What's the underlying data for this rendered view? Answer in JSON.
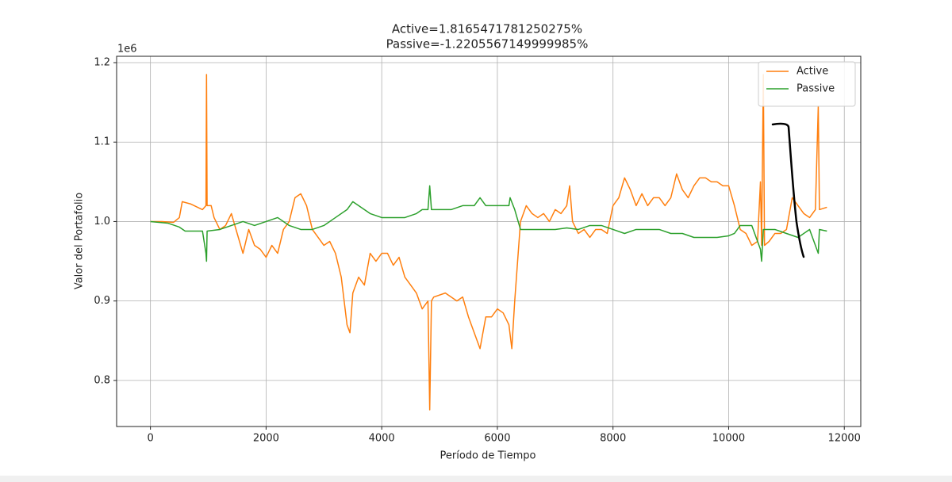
{
  "chart_data": {
    "type": "line",
    "title": [
      "Active=1.8165471781250275%",
      "Passive=-1.2205567149999985%"
    ],
    "xlabel": "Período de Tiempo",
    "ylabel": "Valor del Portafolio",
    "y_offset_label": "1e6",
    "xlim": [
      -585,
      12285
    ],
    "ylim": [
      0.742,
      1.208
    ],
    "xticks": [
      0,
      2000,
      4000,
      6000,
      8000,
      10000,
      12000
    ],
    "yticks": [
      0.8,
      0.9,
      {
        "value": 1,
        "label": "1.0"
      },
      1.1,
      1.2
    ],
    "grid": true,
    "legend": "upper right",
    "series": [
      {
        "name": "Active",
        "color": "#ff7f0e",
        "x": [
          0,
          200,
          400,
          500,
          550,
          700,
          900,
          960,
          970,
          980,
          1050,
          1100,
          1200,
          1300,
          1400,
          1500,
          1600,
          1700,
          1800,
          1900,
          2000,
          2100,
          2200,
          2300,
          2400,
          2500,
          2600,
          2700,
          2800,
          2900,
          3000,
          3100,
          3200,
          3300,
          3400,
          3450,
          3500,
          3600,
          3700,
          3800,
          3900,
          4000,
          4100,
          4200,
          4300,
          4400,
          4500,
          4600,
          4700,
          4800,
          4830,
          4860,
          4900,
          5100,
          5300,
          5400,
          5500,
          5600,
          5700,
          5800,
          5900,
          6000,
          6100,
          6200,
          6250,
          6300,
          6350,
          6400,
          6500,
          6600,
          6700,
          6800,
          6900,
          7000,
          7100,
          7200,
          7250,
          7300,
          7400,
          7500,
          7600,
          7700,
          7800,
          7900,
          8000,
          8100,
          8200,
          8300,
          8400,
          8500,
          8600,
          8700,
          8800,
          8900,
          9000,
          9100,
          9200,
          9300,
          9400,
          9500,
          9600,
          9700,
          9800,
          9900,
          10000,
          10100,
          10200,
          10300,
          10400,
          10500,
          10550,
          10570,
          10600,
          10620,
          10700,
          10800,
          10900,
          11000,
          11100,
          11200,
          11300,
          11400,
          11500,
          11550,
          11570,
          11700
        ],
        "values": [
          1.0,
          1.0,
          0.999,
          1.005,
          1.025,
          1.022,
          1.015,
          1.02,
          1.185,
          1.02,
          1.02,
          1.005,
          0.99,
          0.995,
          1.01,
          0.985,
          0.96,
          0.99,
          0.97,
          0.965,
          0.955,
          0.97,
          0.96,
          0.99,
          1.0,
          1.03,
          1.035,
          1.02,
          0.99,
          0.98,
          0.97,
          0.975,
          0.96,
          0.93,
          0.87,
          0.86,
          0.91,
          0.93,
          0.92,
          0.96,
          0.95,
          0.96,
          0.96,
          0.945,
          0.955,
          0.93,
          0.92,
          0.91,
          0.89,
          0.9,
          0.763,
          0.9,
          0.905,
          0.91,
          0.9,
          0.905,
          0.88,
          0.86,
          0.84,
          0.88,
          0.88,
          0.89,
          0.885,
          0.87,
          0.84,
          0.9,
          0.95,
          1.0,
          1.02,
          1.01,
          1.005,
          1.01,
          1.0,
          1.015,
          1.01,
          1.02,
          1.045,
          1.0,
          0.985,
          0.99,
          0.98,
          0.99,
          0.99,
          0.985,
          1.02,
          1.03,
          1.055,
          1.04,
          1.02,
          1.035,
          1.02,
          1.03,
          1.03,
          1.02,
          1.03,
          1.06,
          1.04,
          1.03,
          1.045,
          1.055,
          1.055,
          1.05,
          1.05,
          1.045,
          1.045,
          1.02,
          0.99,
          0.985,
          0.97,
          0.975,
          1.05,
          0.97,
          1.185,
          0.97,
          0.975,
          0.985,
          0.985,
          0.99,
          1.03,
          1.02,
          1.01,
          1.005,
          1.015,
          1.145,
          1.015,
          1.018
        ]
      },
      {
        "name": "Passive",
        "color": "#2ca02c",
        "x": [
          0,
          300,
          500,
          600,
          900,
          960,
          970,
          980,
          1200,
          1400,
          1600,
          1800,
          2000,
          2200,
          2400,
          2600,
          2800,
          3000,
          3200,
          3400,
          3500,
          3600,
          3800,
          4000,
          4200,
          4400,
          4600,
          4700,
          4800,
          4830,
          4860,
          5000,
          5200,
          5400,
          5600,
          5700,
          5800,
          6000,
          6200,
          6220,
          6300,
          6400,
          6600,
          6800,
          7000,
          7200,
          7400,
          7600,
          7800,
          8000,
          8200,
          8400,
          8600,
          8800,
          9000,
          9200,
          9400,
          9600,
          9800,
          10000,
          10100,
          10200,
          10400,
          10550,
          10570,
          10600,
          10800,
          11000,
          11200,
          11400,
          11550,
          11570,
          11700
        ],
        "values": [
          1.0,
          0.998,
          0.993,
          0.988,
          0.988,
          0.96,
          0.95,
          0.988,
          0.99,
          0.995,
          1.0,
          0.995,
          1.0,
          1.005,
          0.995,
          0.99,
          0.99,
          0.995,
          1.005,
          1.015,
          1.025,
          1.02,
          1.01,
          1.005,
          1.005,
          1.005,
          1.01,
          1.015,
          1.015,
          1.045,
          1.015,
          1.015,
          1.015,
          1.02,
          1.02,
          1.03,
          1.02,
          1.02,
          1.02,
          1.03,
          1.015,
          0.99,
          0.99,
          0.99,
          0.99,
          0.992,
          0.99,
          0.995,
          0.995,
          0.99,
          0.985,
          0.99,
          0.99,
          0.99,
          0.985,
          0.985,
          0.98,
          0.98,
          0.98,
          0.982,
          0.985,
          0.995,
          0.995,
          0.965,
          0.95,
          0.99,
          0.99,
          0.985,
          0.98,
          0.99,
          0.96,
          0.99,
          0.988
        ]
      }
    ]
  }
}
